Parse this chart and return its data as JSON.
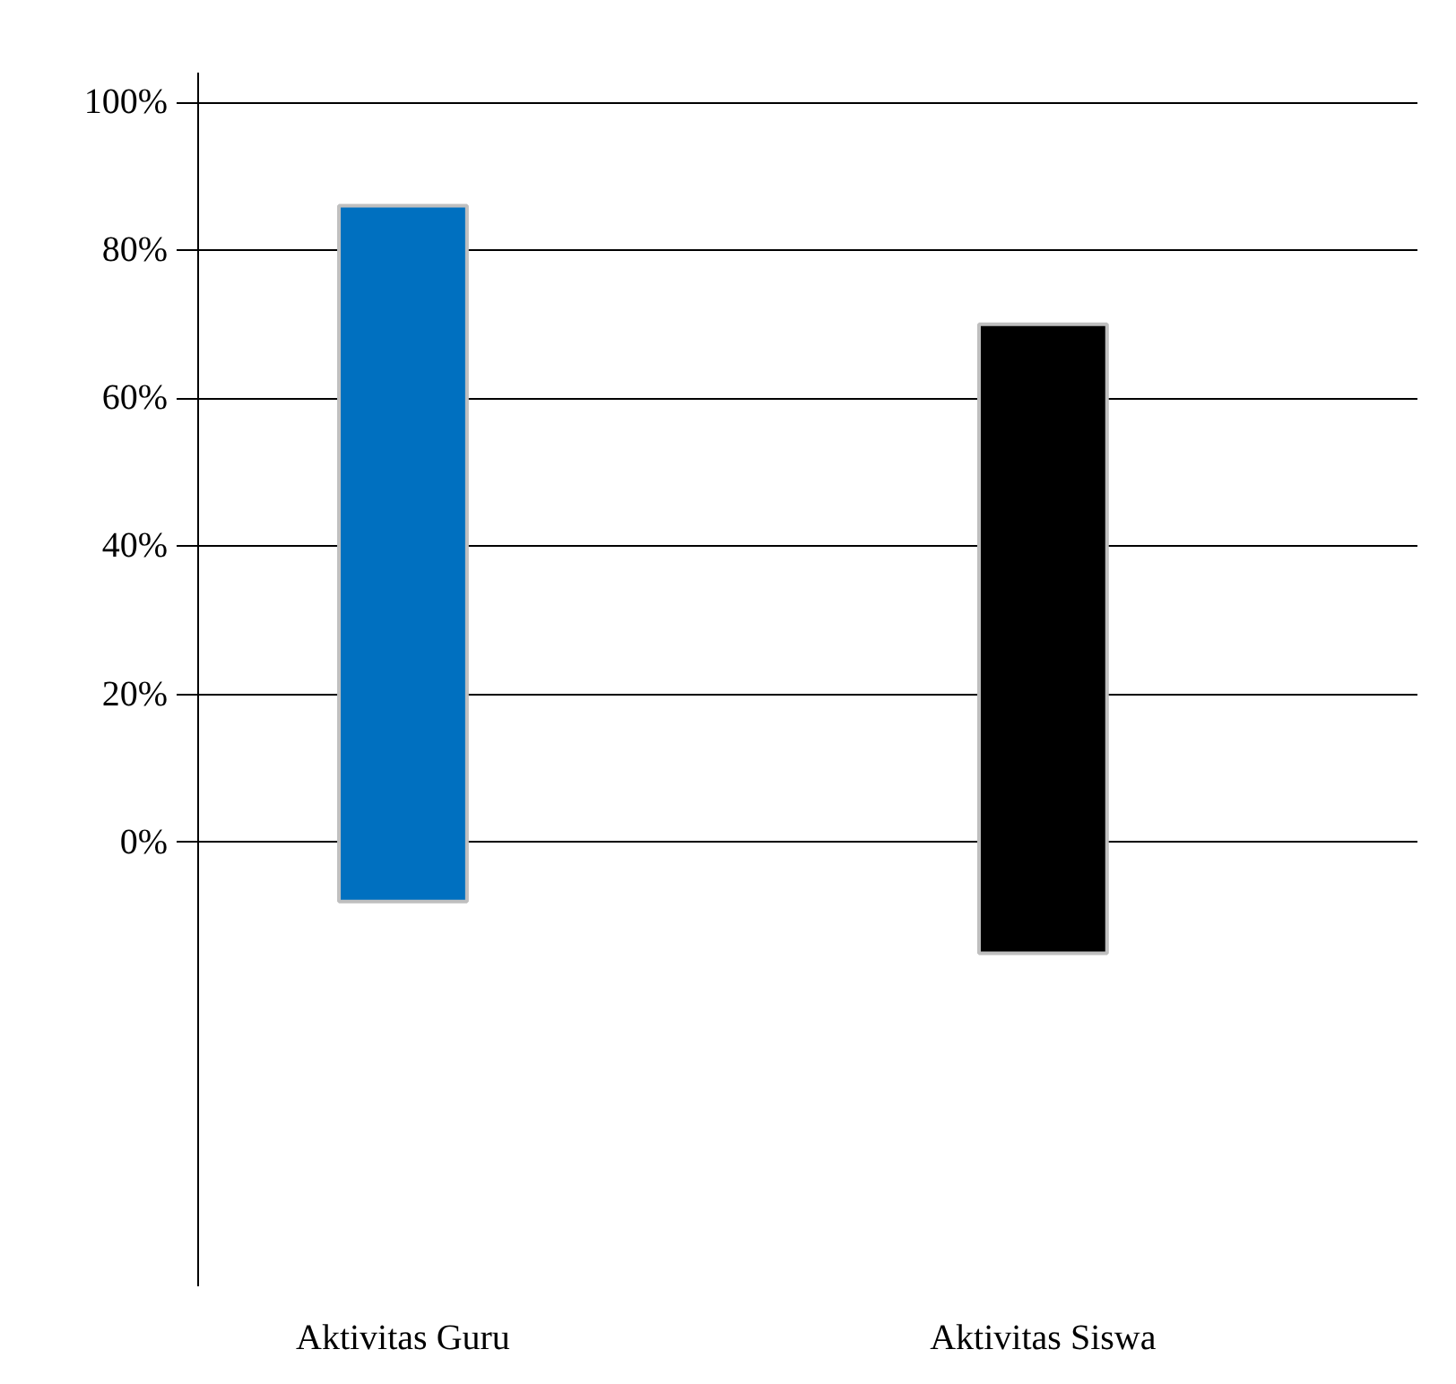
{
  "chart_data": {
    "type": "bar",
    "categories": [
      "Aktivitas Guru",
      "Aktivitas Siswa"
    ],
    "values": [
      94,
      85
    ],
    "base": [
      -8,
      -15
    ],
    "colors": [
      "#0070c0",
      "#000000"
    ],
    "ylim": [
      -60,
      104
    ],
    "yticks": [
      {
        "value": 0,
        "label": "0%"
      },
      {
        "value": 20,
        "label": "20%"
      },
      {
        "value": 40,
        "label": "40%"
      },
      {
        "value": 60,
        "label": "60%"
      },
      {
        "value": 80,
        "label": "80%"
      },
      {
        "value": 100,
        "label": "100%"
      }
    ],
    "grid": "y"
  }
}
